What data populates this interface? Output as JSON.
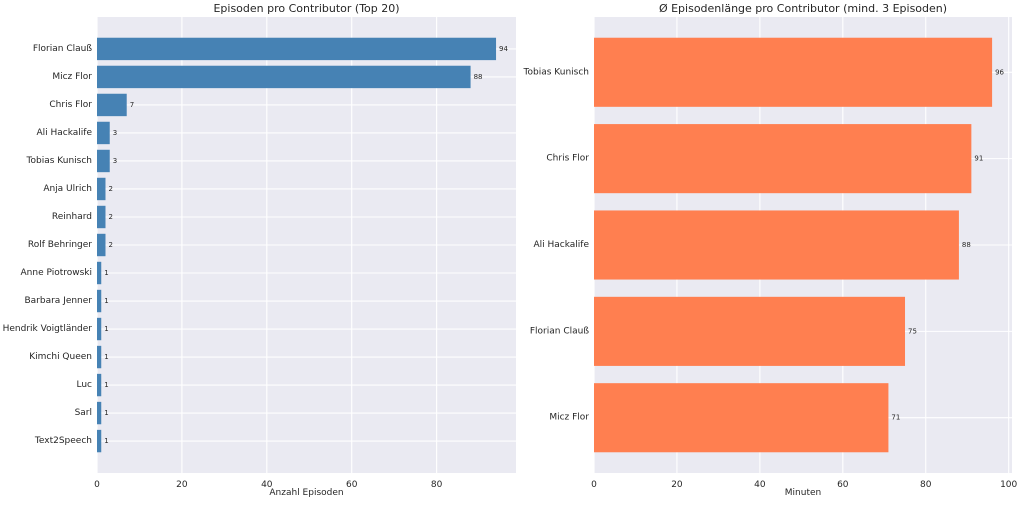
{
  "styles": {
    "figure_bg": "#FFFFFF",
    "plot_bg": "#EAEAF2",
    "grid_color": "#FFFFFF",
    "text_color": "#262626",
    "value_label_color": "#262626"
  },
  "chart_data": [
    {
      "type": "bar",
      "orientation": "horizontal",
      "title": "Episoden pro Contributor (Top 20)",
      "xlabel": "Anzahl Episoden",
      "ylabel": "",
      "categories": [
        "Florian Clauß",
        "Micz Flor",
        "Chris Flor",
        "Ali Hackalife",
        "Tobias Kunisch",
        "Anja Ulrich",
        "Reinhard",
        "Rolf Behringer",
        "Anne Piotrowski",
        "Barbara Jenner",
        "Hendrik Voigtländer",
        "Kimchi Queen",
        "Luc",
        "Sarl",
        "Text2Speech"
      ],
      "values": [
        94,
        88,
        7,
        3,
        3,
        2,
        2,
        2,
        1,
        1,
        1,
        1,
        1,
        1,
        1
      ],
      "bar_color": "#4682B4",
      "xlim": [
        0,
        98.7
      ],
      "xticks": [
        0,
        20,
        40,
        60,
        80
      ],
      "grid": true,
      "legend": false
    },
    {
      "type": "bar",
      "orientation": "horizontal",
      "title": "Ø Episodenlänge pro Contributor (mind. 3 Episoden)",
      "xlabel": "Minuten",
      "ylabel": "",
      "categories": [
        "Tobias Kunisch",
        "Chris Flor",
        "Ali Hackalife",
        "Florian Clauß",
        "Micz Flor"
      ],
      "values": [
        96,
        91,
        88,
        75,
        71
      ],
      "bar_color": "#FF7F50",
      "xlim": [
        0,
        100.8
      ],
      "xticks": [
        0,
        20,
        40,
        60,
        80,
        100
      ],
      "grid": true,
      "legend": false
    }
  ]
}
